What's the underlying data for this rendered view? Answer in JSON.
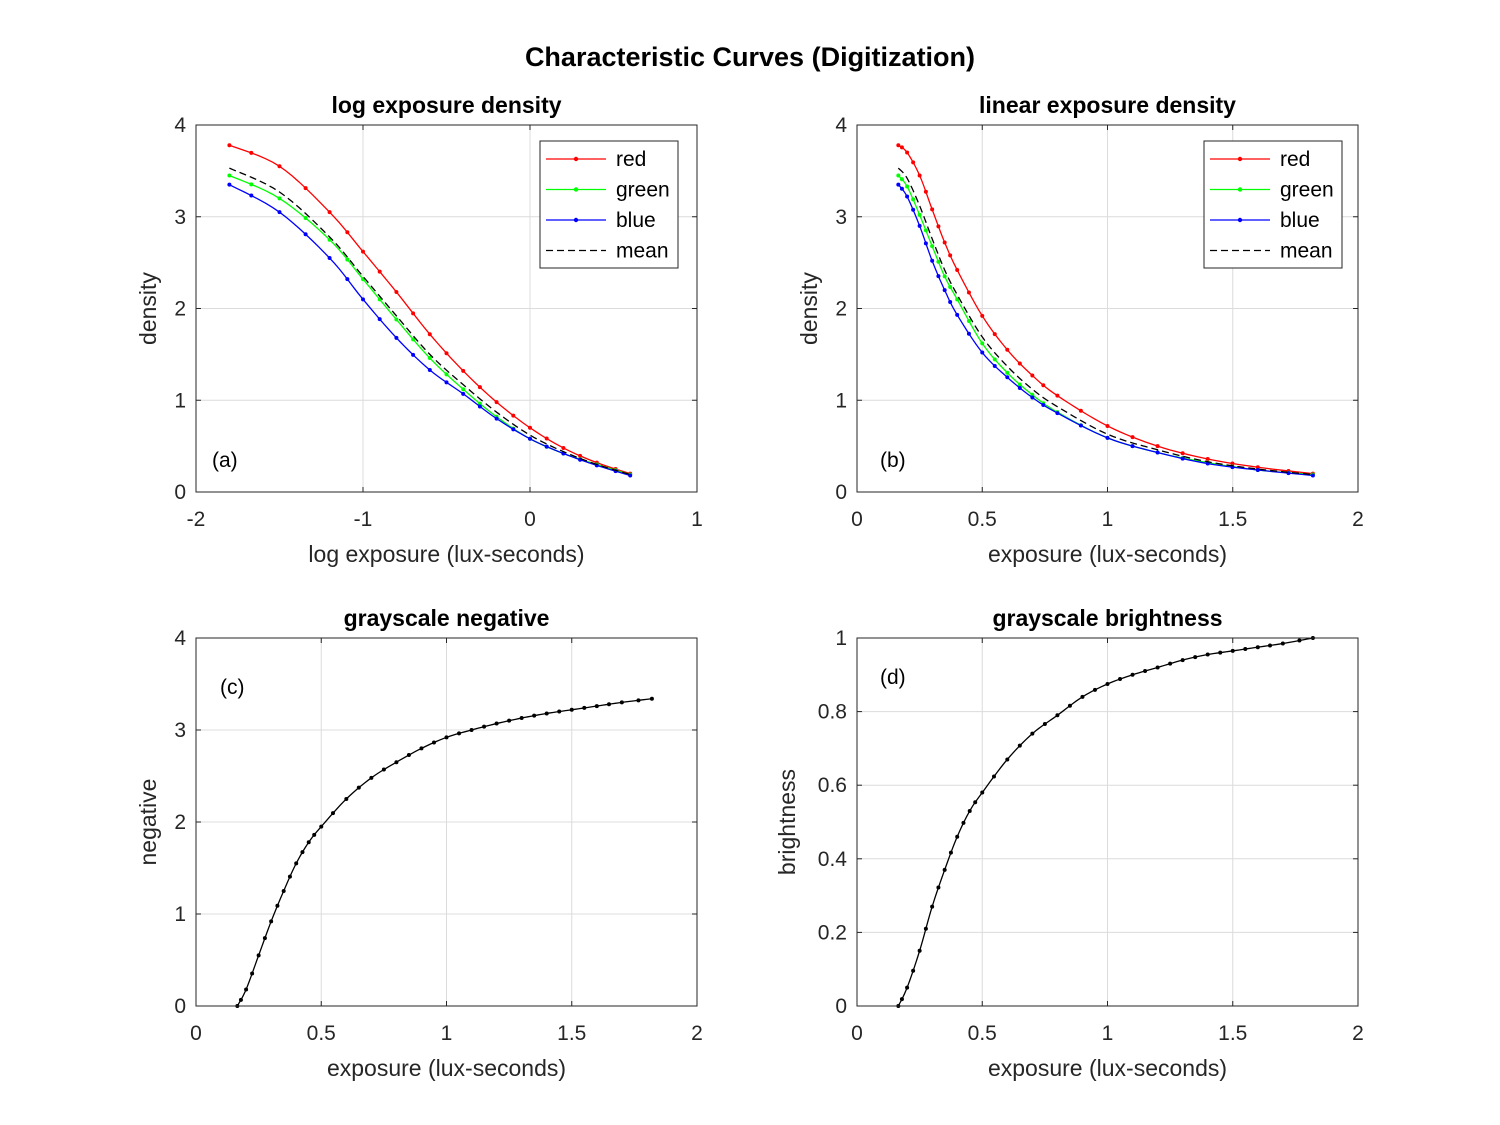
{
  "figure_title": "Characteristic Curves (Digitization)",
  "colors": {
    "red": "#ff0000",
    "green": "#00ff00",
    "blue": "#0000ff",
    "mean": "#000000",
    "gray": "#000000",
    "grid": "#dcdcdc",
    "axis": "#262626"
  },
  "chart_data": [
    {
      "type": "line",
      "title": "log exposure density",
      "xlabel": "log exposure (lux-seconds)",
      "ylabel": "density",
      "xlim": [
        -2,
        1
      ],
      "ylim": [
        0,
        4
      ],
      "xticks": [
        "-2",
        "-1",
        "0",
        "1"
      ],
      "yticks": [
        "0",
        "1",
        "2",
        "3",
        "4"
      ],
      "grid": true,
      "annotation": "(a)",
      "legend": "top-right",
      "series": [
        {
          "name": "red",
          "color": "#ff0000",
          "marker": true,
          "x": [
            -1.8,
            -1.5,
            -1.2,
            -1.0,
            -0.8,
            -0.6,
            -0.4,
            -0.2,
            0.0,
            0.2,
            0.4,
            0.6
          ],
          "y": [
            3.78,
            3.55,
            3.05,
            2.62,
            2.18,
            1.72,
            1.32,
            0.98,
            0.7,
            0.48,
            0.32,
            0.2
          ]
        },
        {
          "name": "green",
          "color": "#00ff00",
          "marker": true,
          "x": [
            -1.8,
            -1.5,
            -1.2,
            -1.0,
            -0.8,
            -0.6,
            -0.4,
            -0.2,
            0.0,
            0.2,
            0.4,
            0.6
          ],
          "y": [
            3.45,
            3.2,
            2.75,
            2.32,
            1.88,
            1.46,
            1.12,
            0.82,
            0.58,
            0.42,
            0.3,
            0.19
          ]
        },
        {
          "name": "blue",
          "color": "#0000ff",
          "marker": true,
          "x": [
            -1.8,
            -1.5,
            -1.2,
            -1.0,
            -0.8,
            -0.6,
            -0.4,
            -0.2,
            0.0,
            0.2,
            0.4,
            0.6
          ],
          "y": [
            3.35,
            3.05,
            2.55,
            2.1,
            1.68,
            1.33,
            1.07,
            0.8,
            0.58,
            0.42,
            0.29,
            0.18
          ]
        },
        {
          "name": "mean",
          "color": "#000000",
          "dashed": true,
          "marker": false,
          "x": [
            -1.8,
            -1.5,
            -1.2,
            -1.0,
            -0.8,
            -0.6,
            -0.4,
            -0.2,
            0.0,
            0.2,
            0.4,
            0.6
          ],
          "y": [
            3.53,
            3.27,
            2.78,
            2.35,
            1.92,
            1.5,
            1.17,
            0.87,
            0.62,
            0.44,
            0.3,
            0.19
          ]
        }
      ]
    },
    {
      "type": "line",
      "title": "linear exposure density",
      "xlabel": "exposure (lux-seconds)",
      "ylabel": "density",
      "xlim": [
        0,
        2
      ],
      "ylim": [
        0,
        4
      ],
      "xticks": [
        "0",
        "0.5",
        "1",
        "1.5",
        "2"
      ],
      "yticks": [
        "0",
        "1",
        "2",
        "3",
        "4"
      ],
      "grid": true,
      "annotation": "(b)",
      "legend": "top-right",
      "series": [
        {
          "name": "red",
          "color": "#ff0000",
          "marker": true,
          "x": [
            0.165,
            0.2,
            0.25,
            0.3,
            0.35,
            0.4,
            0.5,
            0.6,
            0.7,
            0.8,
            1.0,
            1.2,
            1.4,
            1.6,
            1.82
          ],
          "y": [
            3.78,
            3.7,
            3.45,
            3.08,
            2.72,
            2.42,
            1.92,
            1.55,
            1.27,
            1.05,
            0.72,
            0.5,
            0.36,
            0.27,
            0.2
          ]
        },
        {
          "name": "green",
          "color": "#00ff00",
          "marker": true,
          "x": [
            0.165,
            0.2,
            0.25,
            0.3,
            0.35,
            0.4,
            0.5,
            0.6,
            0.7,
            0.8,
            1.0,
            1.2,
            1.4,
            1.6,
            1.82
          ],
          "y": [
            3.45,
            3.33,
            3.02,
            2.68,
            2.35,
            2.1,
            1.62,
            1.3,
            1.06,
            0.87,
            0.59,
            0.43,
            0.32,
            0.24,
            0.19
          ]
        },
        {
          "name": "blue",
          "color": "#0000ff",
          "marker": true,
          "x": [
            0.165,
            0.2,
            0.25,
            0.3,
            0.35,
            0.4,
            0.5,
            0.6,
            0.7,
            0.8,
            1.0,
            1.2,
            1.4,
            1.6,
            1.82
          ],
          "y": [
            3.35,
            3.22,
            2.9,
            2.52,
            2.2,
            1.93,
            1.52,
            1.25,
            1.03,
            0.86,
            0.59,
            0.43,
            0.31,
            0.24,
            0.18
          ]
        },
        {
          "name": "mean",
          "color": "#000000",
          "dashed": true,
          "marker": false,
          "x": [
            0.165,
            0.2,
            0.25,
            0.3,
            0.35,
            0.4,
            0.5,
            0.6,
            0.7,
            0.8,
            1.0,
            1.2,
            1.4,
            1.6,
            1.82
          ],
          "y": [
            3.53,
            3.42,
            3.12,
            2.76,
            2.42,
            2.15,
            1.69,
            1.37,
            1.12,
            0.93,
            0.63,
            0.46,
            0.33,
            0.25,
            0.19
          ]
        }
      ]
    },
    {
      "type": "line",
      "title": "grayscale negative",
      "xlabel": "exposure (lux-seconds)",
      "ylabel": "negative",
      "xlim": [
        0,
        2
      ],
      "ylim": [
        0,
        4
      ],
      "xticks": [
        "0",
        "0.5",
        "1",
        "1.5",
        "2"
      ],
      "yticks": [
        "0",
        "1",
        "2",
        "3",
        "4"
      ],
      "grid": true,
      "annotation": "(c)",
      "series": [
        {
          "name": "",
          "color": "#000000",
          "marker": true,
          "x": [
            0.165,
            0.2,
            0.25,
            0.3,
            0.35,
            0.4,
            0.45,
            0.5,
            0.6,
            0.7,
            0.8,
            0.9,
            1.0,
            1.1,
            1.2,
            1.3,
            1.4,
            1.5,
            1.6,
            1.7,
            1.82
          ],
          "y": [
            0.0,
            0.18,
            0.55,
            0.92,
            1.25,
            1.55,
            1.78,
            1.95,
            2.25,
            2.48,
            2.65,
            2.8,
            2.92,
            3.0,
            3.07,
            3.13,
            3.18,
            3.22,
            3.26,
            3.3,
            3.34
          ]
        }
      ]
    },
    {
      "type": "line",
      "title": "grayscale brightness",
      "xlabel": "exposure (lux-seconds)",
      "ylabel": "brightness",
      "xlim": [
        0,
        2
      ],
      "ylim": [
        0,
        1
      ],
      "xticks": [
        "0",
        "0.5",
        "1",
        "1.5",
        "2"
      ],
      "yticks": [
        "0",
        "0.2",
        "0.4",
        "0.6",
        "0.8",
        "1"
      ],
      "grid": true,
      "annotation": "(d)",
      "series": [
        {
          "name": "",
          "color": "#000000",
          "marker": true,
          "x": [
            0.165,
            0.2,
            0.25,
            0.3,
            0.35,
            0.4,
            0.45,
            0.5,
            0.6,
            0.7,
            0.8,
            0.9,
            1.0,
            1.1,
            1.2,
            1.3,
            1.4,
            1.5,
            1.6,
            1.7,
            1.82
          ],
          "y": [
            0.0,
            0.05,
            0.15,
            0.27,
            0.37,
            0.46,
            0.53,
            0.58,
            0.67,
            0.74,
            0.79,
            0.84,
            0.875,
            0.9,
            0.92,
            0.94,
            0.955,
            0.965,
            0.975,
            0.985,
            1.0
          ]
        }
      ]
    }
  ]
}
